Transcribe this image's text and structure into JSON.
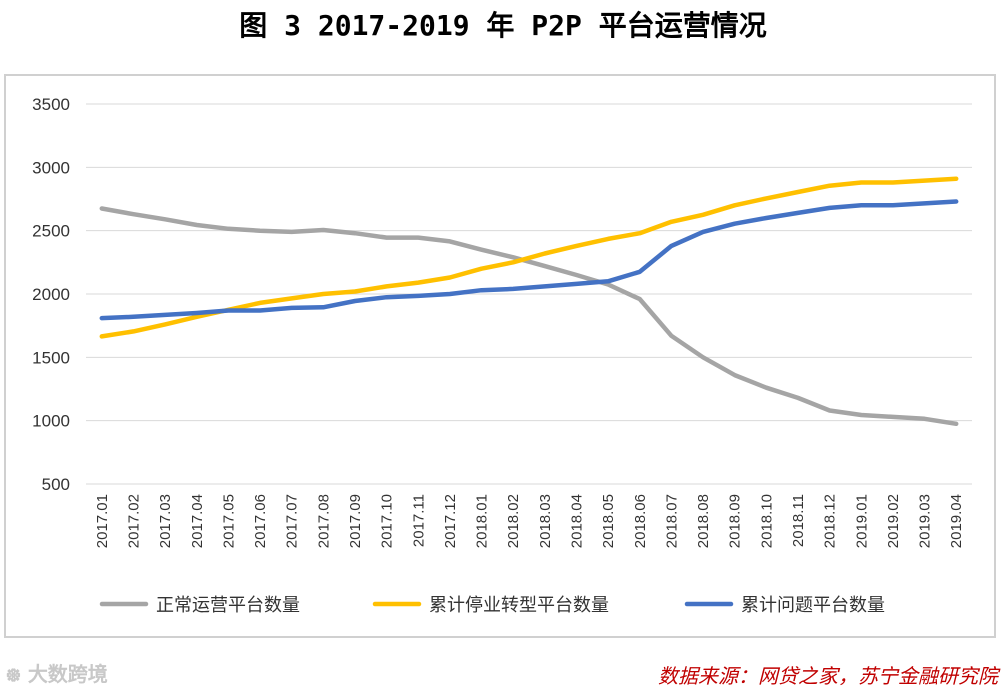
{
  "title": "图 3 2017-2019 年 P2P 平台运营情况",
  "watermark": "大数跨境",
  "watermark_icon": "logo-icon",
  "source": "数据来源：网贷之家，苏宁金融研究院",
  "chart_data": {
    "type": "line",
    "title": "图 3 2017-2019 年 P2P 平台运营情况",
    "xlabel": "",
    "ylabel": "",
    "ylim": [
      500,
      3500
    ],
    "yticks": [
      500,
      1000,
      1500,
      2000,
      2500,
      3000,
      3500
    ],
    "grid": true,
    "legend_position": "bottom",
    "categories": [
      "2017.01",
      "2017.02",
      "2017.03",
      "2017.04",
      "2017.05",
      "2017.06",
      "2017.07",
      "2017.08",
      "2017.09",
      "2017.10",
      "2017.11",
      "2017.12",
      "2018.01",
      "2018.02",
      "2018.03",
      "2018.04",
      "2018.05",
      "2018.06",
      "2018.07",
      "2018.08",
      "2018.09",
      "2018.10",
      "2018.11",
      "2018.12",
      "2019.01",
      "2019.02",
      "2019.03",
      "2019.04"
    ],
    "series": [
      {
        "name": "正常运营平台数量",
        "color": "#a5a5a5",
        "values": [
          2675,
          2630,
          2590,
          2545,
          2515,
          2500,
          2490,
          2505,
          2480,
          2445,
          2445,
          2415,
          2350,
          2290,
          2220,
          2150,
          2075,
          1960,
          1670,
          1500,
          1360,
          1260,
          1180,
          1080,
          1045,
          1030,
          1015,
          975
        ]
      },
      {
        "name": "累计停业转型平台数量",
        "color": "#ffc000",
        "values": [
          1665,
          1705,
          1760,
          1820,
          1875,
          1930,
          1965,
          2000,
          2020,
          2060,
          2090,
          2130,
          2200,
          2250,
          2320,
          2380,
          2435,
          2480,
          2570,
          2625,
          2700,
          2755,
          2805,
          2855,
          2880,
          2880,
          2895,
          2910
        ]
      },
      {
        "name": "累计问题平台数量",
        "color": "#4472c4",
        "values": [
          1810,
          1820,
          1835,
          1850,
          1870,
          1870,
          1890,
          1895,
          1945,
          1975,
          1985,
          2000,
          2030,
          2040,
          2060,
          2080,
          2100,
          2175,
          2380,
          2490,
          2555,
          2600,
          2640,
          2680,
          2700,
          2700,
          2715,
          2730
        ]
      }
    ]
  }
}
